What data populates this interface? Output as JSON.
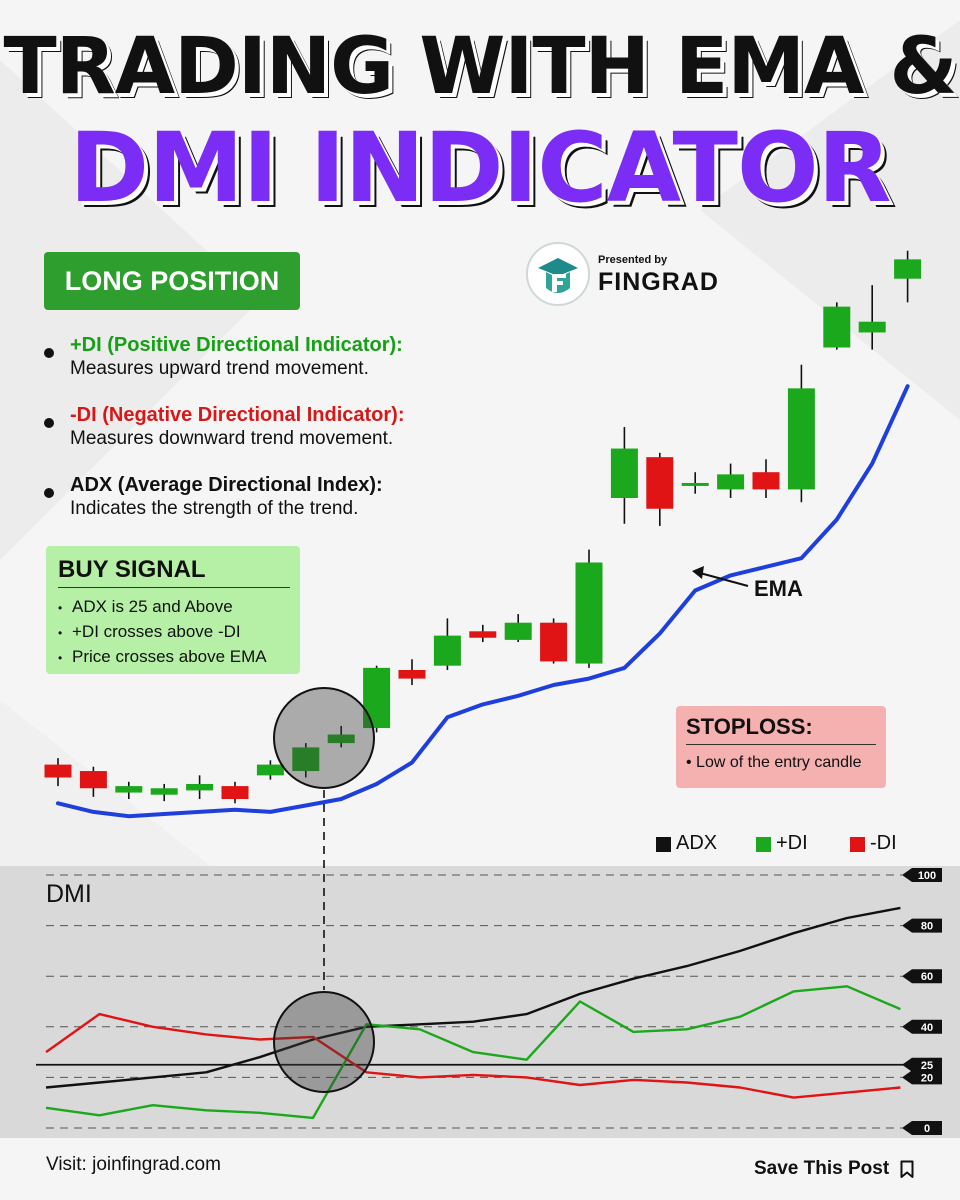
{
  "title": {
    "line1": "TRADING WITH EMA &",
    "line2": "DMI INDICATOR"
  },
  "badge": "LONG POSITION",
  "presented": {
    "by": "Presented by",
    "brand": "FINGRAD"
  },
  "bullets": [
    {
      "heading": "+DI (Positive Directional Indicator):",
      "desc": "Measures upward trend movement."
    },
    {
      "heading": "-DI (Negative Directional Indicator):",
      "desc": "Measures downward trend movement."
    },
    {
      "heading": "ADX (Average Directional Index):",
      "desc": "Indicates the strength of the trend."
    }
  ],
  "buy_signal": {
    "heading": "BUY SIGNAL",
    "items": [
      "ADX is 25 and Above",
      "+DI crosses above -DI",
      "Price crosses above EMA"
    ]
  },
  "stoploss": {
    "heading": "STOPLOSS:",
    "item": "Low of the entry candle"
  },
  "ema_label": "EMA",
  "legend": {
    "adx": "ADX",
    "pdi": "+DI",
    "ndi": "-DI"
  },
  "colors": {
    "bull": "#1ca81c",
    "bear": "#e01414",
    "ema": "#1f3fdc",
    "adx": "#111111",
    "accent": "#7b2cf5"
  },
  "dmi_title": "DMI",
  "footer": {
    "visit": "Visit: joinfingrad.com",
    "save": "Save This Post"
  },
  "icons": {
    "bookmark": "bookmark-icon",
    "logo": "fingrad-logo-icon"
  },
  "chart_data": [
    {
      "type": "candlestick",
      "title": "",
      "candles": [
        {
          "open": 36,
          "close": 30,
          "high": 39,
          "low": 26
        },
        {
          "open": 33,
          "close": 25,
          "high": 35,
          "low": 21
        },
        {
          "open": 23,
          "close": 26,
          "high": 28,
          "low": 20
        },
        {
          "open": 22,
          "close": 25,
          "high": 27,
          "low": 19
        },
        {
          "open": 24,
          "close": 27,
          "high": 31,
          "low": 20
        },
        {
          "open": 26,
          "close": 20,
          "high": 28,
          "low": 18
        },
        {
          "open": 31,
          "close": 36,
          "high": 38,
          "low": 29
        },
        {
          "open": 33,
          "close": 44,
          "high": 46,
          "low": 30
        },
        {
          "open": 46,
          "close": 50,
          "high": 54,
          "low": 44
        },
        {
          "open": 53,
          "close": 81,
          "high": 82,
          "low": 51
        },
        {
          "open": 80,
          "close": 76,
          "high": 85,
          "low": 73
        },
        {
          "open": 82,
          "close": 96,
          "high": 104,
          "low": 80
        },
        {
          "open": 98,
          "close": 95,
          "high": 101,
          "low": 93
        },
        {
          "open": 94,
          "close": 102,
          "high": 106,
          "low": 93
        },
        {
          "open": 102,
          "close": 84,
          "high": 104,
          "low": 83
        },
        {
          "open": 83,
          "close": 130,
          "high": 136,
          "low": 81
        },
        {
          "open": 160,
          "close": 183,
          "high": 193,
          "low": 148
        },
        {
          "open": 179,
          "close": 155,
          "high": 181,
          "low": 147
        },
        {
          "open": 166,
          "close": 167,
          "high": 172,
          "low": 162
        },
        {
          "open": 164,
          "close": 171,
          "high": 176,
          "low": 160
        },
        {
          "open": 172,
          "close": 164,
          "high": 178,
          "low": 160
        },
        {
          "open": 164,
          "close": 211,
          "high": 222,
          "low": 158
        },
        {
          "open": 230,
          "close": 249,
          "high": 251,
          "low": 229
        },
        {
          "open": 237,
          "close": 242,
          "high": 259,
          "low": 229
        },
        {
          "open": 262,
          "close": 271,
          "high": 275,
          "low": 251
        }
      ],
      "ema": [
        18,
        14,
        12,
        13,
        14,
        15,
        14,
        17,
        20,
        27,
        37,
        58,
        64,
        68,
        73,
        76,
        81,
        97,
        117,
        124,
        128,
        132,
        150,
        176,
        212
      ]
    },
    {
      "type": "line",
      "title": "DMI",
      "ylim": [
        0,
        100
      ],
      "yticks": [
        0,
        20,
        25,
        40,
        60,
        80,
        100
      ],
      "threshold": 25,
      "series": [
        {
          "name": "ADX",
          "values": [
            16,
            18,
            20,
            22,
            28,
            35,
            40,
            41,
            42,
            45,
            53,
            59,
            64,
            70,
            77,
            83,
            87
          ]
        },
        {
          "name": "+DI",
          "values": [
            8,
            5,
            9,
            7,
            6,
            4,
            41,
            39,
            30,
            27,
            50,
            38,
            39,
            44,
            54,
            56,
            47
          ]
        },
        {
          "name": "-DI",
          "values": [
            30,
            45,
            40,
            37,
            35,
            36,
            22,
            20,
            21,
            20,
            17,
            19,
            18,
            16,
            12,
            14,
            16
          ]
        }
      ]
    }
  ]
}
